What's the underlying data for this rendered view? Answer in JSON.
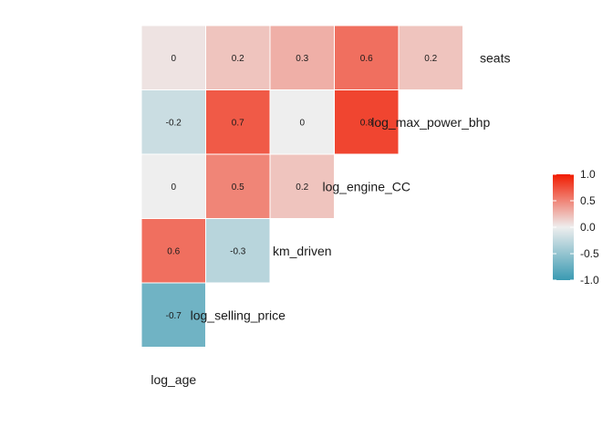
{
  "chart_data": {
    "type": "heatmap",
    "variables": [
      "log_age",
      "log_selling_price",
      "km_driven",
      "log_engine_CC",
      "log_max_power_bhp",
      "seats"
    ],
    "cells": [
      {
        "row": "log_selling_price",
        "col": "log_age",
        "value": -0.7,
        "label": "-0.7"
      },
      {
        "row": "km_driven",
        "col": "log_age",
        "value": 0.6,
        "label": "0.6"
      },
      {
        "row": "km_driven",
        "col": "log_selling_price",
        "value": -0.3,
        "label": "-0.3"
      },
      {
        "row": "log_engine_CC",
        "col": "log_age",
        "value": 0.0,
        "label": "0"
      },
      {
        "row": "log_engine_CC",
        "col": "log_selling_price",
        "value": 0.5,
        "label": "0.5"
      },
      {
        "row": "log_engine_CC",
        "col": "km_driven",
        "value": 0.2,
        "label": "0.2"
      },
      {
        "row": "log_max_power_bhp",
        "col": "log_age",
        "value": -0.2,
        "label": "-0.2"
      },
      {
        "row": "log_max_power_bhp",
        "col": "log_selling_price",
        "value": 0.7,
        "label": "0.7"
      },
      {
        "row": "log_max_power_bhp",
        "col": "km_driven",
        "value": 0.0,
        "label": "0"
      },
      {
        "row": "log_max_power_bhp",
        "col": "log_engine_CC",
        "value": 0.8,
        "label": "0.8"
      },
      {
        "row": "seats",
        "col": "log_age",
        "value": 0.05,
        "label": "0"
      },
      {
        "row": "seats",
        "col": "log_selling_price",
        "value": 0.2,
        "label": "0.2"
      },
      {
        "row": "seats",
        "col": "km_driven",
        "value": 0.3,
        "label": "0.3"
      },
      {
        "row": "seats",
        "col": "log_engine_CC",
        "value": 0.6,
        "label": "0.6"
      },
      {
        "row": "seats",
        "col": "log_max_power_bhp",
        "value": 0.2,
        "label": "0.2"
      }
    ],
    "color_scale": {
      "low": "#3A9AB2",
      "mid": "#EEEEEE",
      "high": "#F11B00",
      "limits": [
        -1,
        1
      ]
    },
    "legend": {
      "position": "right",
      "ticks": [
        1.0,
        0.5,
        0.0,
        -0.5,
        -1.0
      ],
      "tick_labels": [
        "1.0",
        "0.5",
        "0.0",
        "-0.5",
        "-1.0"
      ]
    },
    "title": "",
    "xlabel": "",
    "ylabel": "",
    "grid": false
  }
}
